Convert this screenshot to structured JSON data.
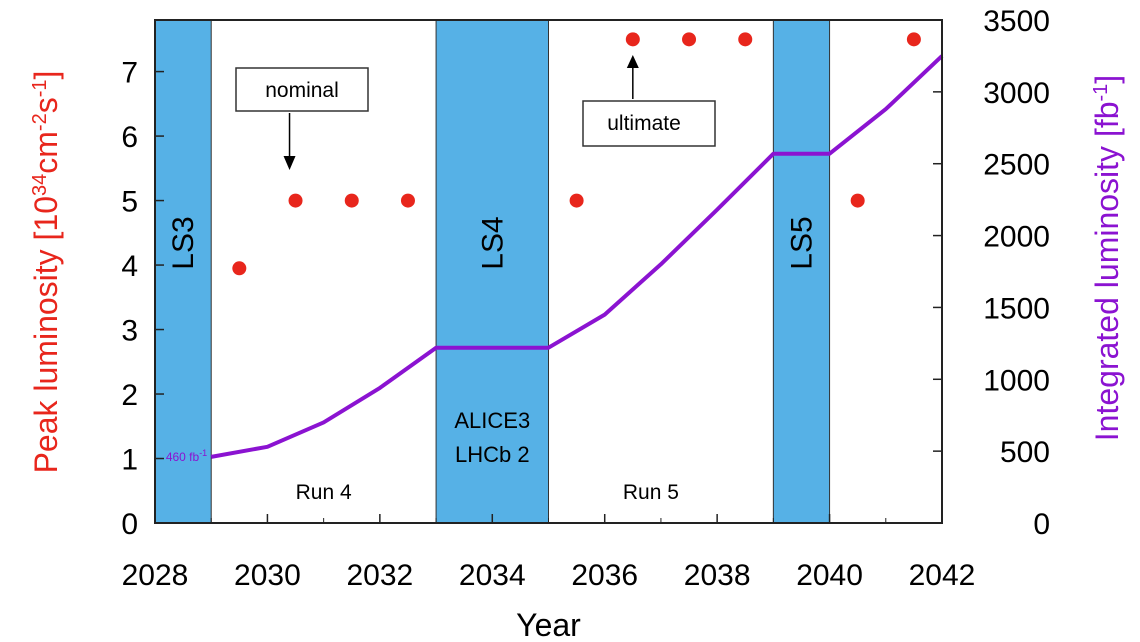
{
  "chart_data": {
    "type": "scatter",
    "title": "",
    "xlabel": "Year",
    "ylabel_left": "Peak luminosity [10",
    "ylabel_left_sup1": "34",
    "ylabel_left_mid": "cm",
    "ylabel_left_sup2": "-2",
    "ylabel_left_mid2": "s",
    "ylabel_left_sup3": "-1",
    "ylabel_left_end": "]",
    "ylabel_right": "Integrated luminosity [fb",
    "ylabel_right_sup": "-1",
    "ylabel_right_end": "]",
    "xlim": [
      2028,
      2042
    ],
    "ylim_left": [
      0,
      7.8
    ],
    "ylim_right": [
      0,
      3500
    ],
    "x_ticks": [
      "2028",
      "2030",
      "2032",
      "2034",
      "2036",
      "2038",
      "2040",
      "2042"
    ],
    "left_ticks": [
      "0",
      "1",
      "2",
      "3",
      "4",
      "5",
      "6",
      "7"
    ],
    "right_ticks": [
      "0",
      "500",
      "1000",
      "1500",
      "2000",
      "2500",
      "3000",
      "3500"
    ],
    "colors": {
      "band": "#56b1e6",
      "points": "#e8261c",
      "line": "#8b13d1",
      "left_label": "#e8261c",
      "right_label": "#8b13d1"
    },
    "shutdowns": [
      {
        "label": "LS3",
        "start": 2028,
        "end": 2029
      },
      {
        "label": "LS4",
        "start": 2033,
        "end": 2035
      },
      {
        "label": "LS5",
        "start": 2039,
        "end": 2040
      }
    ],
    "runs": [
      {
        "label": "Run 4",
        "x": 2031
      },
      {
        "label": "Run 5",
        "x": 2037
      }
    ],
    "experiments": [
      "ALICE3",
      "LHCb 2"
    ],
    "series": [
      {
        "name": "Peak luminosity",
        "axis": "left",
        "x": [
          2029.5,
          2030.5,
          2031.5,
          2032.5,
          2035.5,
          2036.5,
          2037.5,
          2038.5,
          2040.5,
          2041.5
        ],
        "values": [
          3.95,
          5.0,
          5.0,
          5.0,
          5.0,
          7.5,
          7.5,
          7.5,
          5.0,
          7.5
        ]
      },
      {
        "name": "Integrated luminosity",
        "axis": "right",
        "x": [
          2029,
          2030,
          2031,
          2032,
          2033,
          2034,
          2035,
          2036,
          2037,
          2038,
          2039,
          2040,
          2041,
          2042
        ],
        "values": [
          460,
          530,
          700,
          940,
          1220,
          1220,
          1220,
          1450,
          1800,
          2180,
          2570,
          2570,
          2880,
          3250
        ]
      }
    ],
    "annotations": {
      "nominal": {
        "label": "nominal",
        "x": 2030.5,
        "y": 5.0
      },
      "ultimate": {
        "label": "ultimate",
        "x": 2036.5,
        "y": 7.5
      },
      "start_value": "460 fb",
      "start_value_sup": "-1"
    },
    "grid": false,
    "legend": "none"
  }
}
